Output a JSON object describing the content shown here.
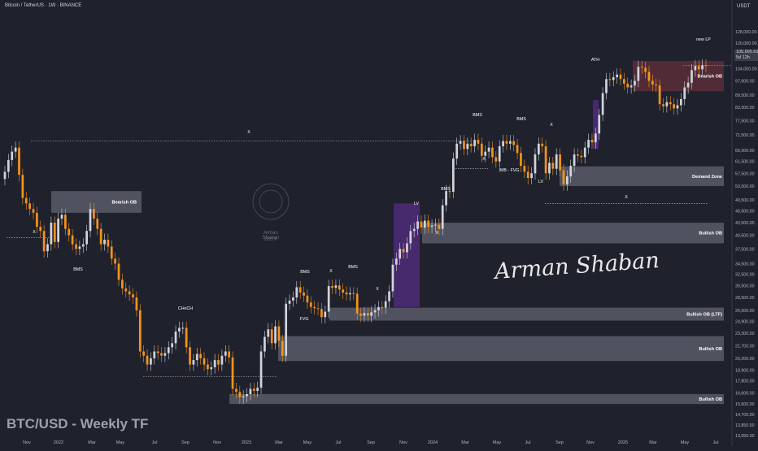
{
  "header": {
    "title": "Bitcoin / TetherUS · 1W · BINANCE",
    "currency": "USDT"
  },
  "price_tag": {
    "price": "105,695.69",
    "countdown": "5d 12h"
  },
  "watermark": "BTC/USD - Weekly TF",
  "signature": "Arman Shaban",
  "logo": {
    "name": "Arman Shaban",
    "year": "2025 ©",
    "icon": "brain-logo-icon"
  },
  "colors": {
    "background": "#1f222d",
    "bullish": "#d1d4dc",
    "bearish": "#f7931a",
    "zone": "#5d606b",
    "bearish_ob": "#5b2e38",
    "imbalance": "#4b2a75",
    "grid": "#2a2e39"
  },
  "chart_data": {
    "type": "candlestick",
    "title": "Bitcoin / TetherUS · 1W · BINANCE",
    "xlabel": "",
    "ylabel": "",
    "y_scale": "log",
    "ylim": [
      13000,
      140000
    ],
    "y_ticks": [
      "128,000.00",
      "120,000.00",
      "112,000.00",
      "104,000.00",
      "97,000.00",
      "89,500.00",
      "83,500.00",
      "77,500.00",
      "71,500.00",
      "65,500.00",
      "61,500.00",
      "57,500.00",
      "53,500.00",
      "49,500.00",
      "46,500.00",
      "43,500.00",
      "40,500.00",
      "37,500.00",
      "34,500.00",
      "32,500.00",
      "30,500.00",
      "28,500.00",
      "26,500.00",
      "24,900.00",
      "23,300.00",
      "21,700.00",
      "20,200.00",
      "18,900.00",
      "17,800.00",
      "16,600.00",
      "15,600.00",
      "14,700.00",
      "13,850.00",
      "13,050.00"
    ],
    "x_ticks": [
      "Nov",
      "2022",
      "Mar",
      "May",
      "Jul",
      "Sep",
      "Nov",
      "2023",
      "Mar",
      "May",
      "Jul",
      "Sep",
      "Nov",
      "2024",
      "Mar",
      "May",
      "Jul",
      "Sep",
      "Nov",
      "2025",
      "Mar",
      "May",
      "Jul"
    ],
    "candle_colors": {
      "up": "#d1d4dc",
      "down": "#f7931a"
    },
    "closes": [
      58000,
      62000,
      65000,
      66500,
      57000,
      50000,
      48500,
      47000,
      46000,
      42500,
      41500,
      37000,
      38500,
      43500,
      39000,
      44500,
      45500,
      42000,
      40500,
      38500,
      37500,
      38000,
      38500,
      41500,
      47000,
      44500,
      42000,
      38500,
      39500,
      38000,
      35500,
      34500,
      31500,
      30000,
      29500,
      29000,
      28500,
      26500,
      21000,
      20500,
      19500,
      20200,
      21000,
      20800,
      20500,
      20800,
      21500,
      22000,
      23500,
      24000,
      24000,
      21500,
      19500,
      20000,
      20700,
      20200,
      19500,
      19000,
      19200,
      20000,
      19500,
      20500,
      21000,
      20300,
      17000,
      16700,
      16200,
      16300,
      16500,
      17000,
      16800,
      17100,
      21000,
      22800,
      23800,
      22000,
      24200,
      22300,
      20500,
      27500,
      28000,
      28500,
      30200,
      29300,
      28800,
      27700,
      27000,
      26800,
      26700,
      25500,
      26300,
      30400,
      30100,
      30500,
      29800,
      29300,
      29000,
      29200,
      29100,
      26000,
      25700,
      26100,
      25700,
      26200,
      26500,
      27000,
      26900,
      27900,
      29500,
      34300,
      35500,
      37500,
      36800,
      38700,
      41500,
      42000,
      43800,
      42300,
      44000,
      42500,
      42800,
      43000,
      42000,
      48000,
      52000,
      51800,
      62500,
      68000,
      69000,
      66000,
      68000,
      67000,
      69500,
      68000,
      63500,
      65000,
      66500,
      63000,
      61500,
      67000,
      69000,
      68000,
      69000,
      67500,
      64500,
      60000,
      58000,
      56000,
      57500,
      64000,
      68000,
      67000,
      57500,
      61000,
      59000,
      64000,
      58500,
      54000,
      56500,
      60000,
      64000,
      63500,
      63000,
      66500,
      69500,
      68500,
      72000,
      80000,
      90500,
      98000,
      97500,
      99000,
      100500,
      98000,
      95500,
      93500,
      94500,
      97000,
      105000,
      104500,
      102000,
      97000,
      95000,
      94500,
      85000,
      84000,
      86000,
      85000,
      83000,
      84500,
      87500,
      93500,
      96000,
      103000,
      105500,
      103500,
      106000,
      105695
    ],
    "zones": [
      {
        "label": "Bearish OB",
        "y_range": [
          46000,
          52000
        ]
      },
      {
        "label": "Demand Zone",
        "y_range": [
          53500,
          59800
        ]
      },
      {
        "label": "Bullish OB",
        "y_range": [
          38700,
          43500
        ]
      },
      {
        "label": "Bullish OB (LTF)",
        "y_range": [
          25000,
          26900
        ]
      },
      {
        "label": "Bullish OB",
        "y_range": [
          19900,
          22900
        ]
      },
      {
        "label": "Bullish OB",
        "y_range": [
          15600,
          16500
        ]
      },
      {
        "label": "Bearish OB",
        "y_range": [
          91500,
          108500
        ]
      }
    ],
    "annotations": [
      "BMS",
      "X",
      "CHoCH",
      "BMS",
      "X",
      "BMS",
      "FVG",
      "X",
      "LV",
      "BMS",
      "X",
      "IMB - FVG",
      "BMS",
      "BMS",
      "X",
      "LV",
      "ATH",
      "new LP",
      "X",
      "X",
      "X"
    ]
  }
}
